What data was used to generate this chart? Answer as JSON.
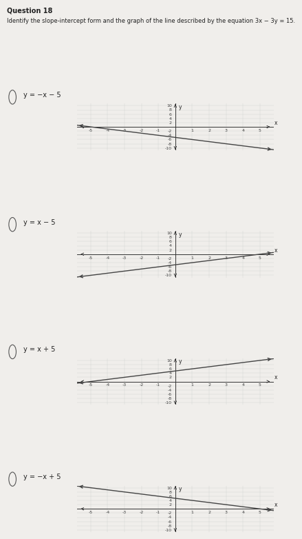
{
  "title": "Question 18",
  "question_text": "Identify the slope-intercept form and the graph of the line described by the equation 3x − 3y = 15.",
  "background_color": "#e8e8e8",
  "paper_color": "#f0eeeb",
  "options": [
    {
      "label": "y = −x − 5",
      "slope": -1,
      "intercept": -5
    },
    {
      "label": "y = x − 5",
      "slope": 1,
      "intercept": -5
    },
    {
      "label": "y = x + 5",
      "slope": 1,
      "intercept": 5
    },
    {
      "label": "y = −x + 5",
      "slope": -1,
      "intercept": 5
    }
  ],
  "xlim": [
    -5.8,
    5.8
  ],
  "ylim": [
    -11,
    11
  ],
  "xticks": [
    -5,
    -4,
    -3,
    -2,
    -1,
    1,
    2,
    3,
    4,
    5
  ],
  "yticks": [
    -10,
    -8,
    -6,
    -4,
    -2,
    2,
    4,
    6,
    8,
    10
  ],
  "line_color": "#444444",
  "axis_color": "#333333",
  "text_color": "#222222",
  "grid_color": "#cccccc",
  "tick_color": "#444444"
}
